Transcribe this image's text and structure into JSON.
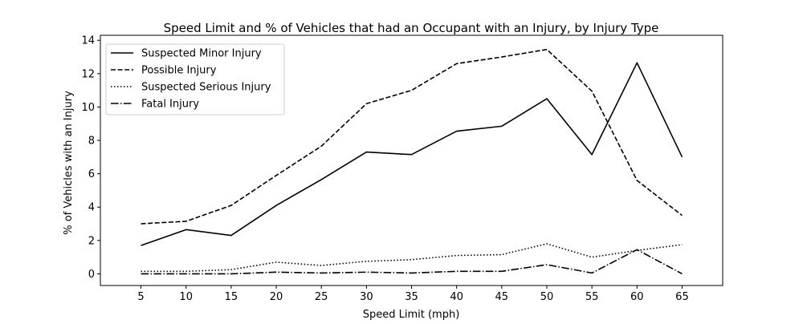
{
  "chart_data": {
    "type": "line",
    "title": "Speed Limit and % of Vehicles that had an Occupant with an Injury, by Injury Type",
    "xlabel": "Speed Limit (mph)",
    "ylabel": "% of Vehicles with an Injury",
    "x": [
      5,
      10,
      15,
      20,
      25,
      30,
      35,
      40,
      45,
      50,
      55,
      60,
      65
    ],
    "xticks": [
      "5",
      "10",
      "15",
      "20",
      "25",
      "30",
      "35",
      "40",
      "45",
      "50",
      "55",
      "60",
      "65"
    ],
    "yticks": [
      "0",
      "2",
      "4",
      "6",
      "8",
      "10",
      "12",
      "14"
    ],
    "ylim": [
      -0.7,
      14.3
    ],
    "xlim": [
      0.5,
      69.5
    ],
    "grid": false,
    "legend_position": "top-left",
    "series": [
      {
        "name": "Suspected Minor Injury",
        "style": "solid",
        "color": "#000000",
        "values": [
          1.7,
          2.65,
          2.3,
          4.1,
          5.65,
          7.3,
          7.15,
          8.55,
          8.85,
          10.5,
          7.15,
          12.65,
          7.0
        ]
      },
      {
        "name": "Possible Injury",
        "style": "dashed",
        "color": "#000000",
        "values": [
          3.0,
          3.15,
          4.1,
          5.9,
          7.65,
          10.2,
          11.0,
          12.6,
          13.0,
          13.45,
          10.95,
          5.6,
          3.5
        ]
      },
      {
        "name": "Suspected Serious Injury",
        "style": "dotted",
        "color": "#000000",
        "values": [
          0.15,
          0.15,
          0.25,
          0.7,
          0.5,
          0.75,
          0.85,
          1.1,
          1.15,
          1.8,
          1.0,
          1.4,
          1.75
        ]
      },
      {
        "name": "Fatal Injury",
        "style": "dashdot",
        "color": "#000000",
        "values": [
          0.0,
          0.0,
          0.0,
          0.1,
          0.05,
          0.1,
          0.05,
          0.15,
          0.15,
          0.55,
          0.05,
          1.45,
          0.0
        ]
      }
    ]
  }
}
